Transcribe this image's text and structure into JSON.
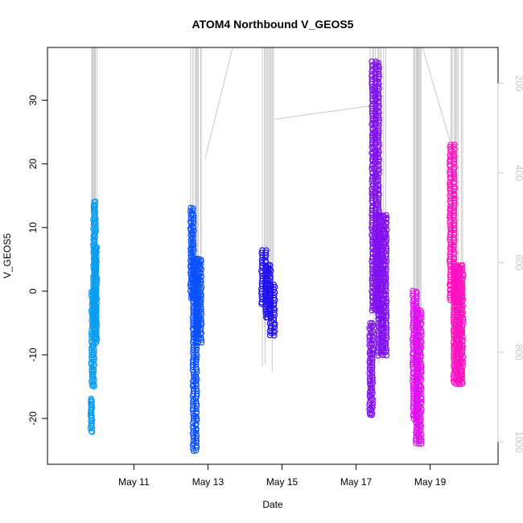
{
  "chart_data": {
    "type": "scatter",
    "title": "ATOM4 Northbound V_GEOS5",
    "xlabel": "Date",
    "ylabel": "V_GEOS5",
    "xlim": [
      "2016-05-08T16:00",
      "2016-05-20T20:00"
    ],
    "ylim": [
      -27.2,
      38.3
    ],
    "x_ticks": [
      {
        "x": "2016-05-11T00:00",
        "label": "May 11"
      },
      {
        "x": "2016-05-13T00:00",
        "label": "May 13"
      },
      {
        "x": "2016-05-15T00:00",
        "label": "May 15"
      },
      {
        "x": "2016-05-17T00:00",
        "label": "May 17"
      },
      {
        "x": "2016-05-19T00:00",
        "label": "May 19"
      }
    ],
    "y_ticks": [
      -20,
      -10,
      0,
      10,
      20,
      30
    ],
    "secondary_axis": {
      "side": "right",
      "color": "#c8c8c8",
      "reversed": true,
      "range": [
        120,
        1050
      ],
      "ticks": [
        200,
        400,
        600,
        800,
        1000
      ],
      "series_type": "line"
    },
    "grid": false,
    "series": [
      {
        "color": "#0a9ef0",
        "segments": [
          {
            "t0": "2016-05-09T20:15",
            "t1": "2016-05-09T20:45",
            "ymin": -22,
            "ymax": -17
          },
          {
            "t0": "2016-05-09T20:45",
            "t1": "2016-05-09T22:00",
            "ymin": -15,
            "ymax": 0
          },
          {
            "t0": "2016-05-09T22:00",
            "t1": "2016-05-09T23:00",
            "ymin": -5,
            "ymax": 14
          },
          {
            "t0": "2016-05-09T23:00",
            "t1": "2016-05-09T23:45",
            "ymin": -8,
            "ymax": 7
          }
        ]
      },
      {
        "color": "#0a50ff",
        "segments": [
          {
            "t0": "2016-05-12T13:00",
            "t1": "2016-05-12T14:30",
            "ymin": -1,
            "ymax": 13
          },
          {
            "t0": "2016-05-12T14:30",
            "t1": "2016-05-12T16:30",
            "ymin": -25,
            "ymax": 5
          },
          {
            "t0": "2016-05-12T16:30",
            "t1": "2016-05-12T19:30",
            "ymin": -8,
            "ymax": 5
          }
        ]
      },
      {
        "color": "#2010f0",
        "segments": [
          {
            "t0": "2016-05-14T11:00",
            "t1": "2016-05-14T13:30",
            "ymin": -2,
            "ymax": 6.5
          },
          {
            "t0": "2016-05-14T13:30",
            "t1": "2016-05-14T16:30",
            "ymin": -4,
            "ymax": 4
          },
          {
            "t0": "2016-05-14T16:30",
            "t1": "2016-05-14T19:00",
            "ymin": -7,
            "ymax": 1
          }
        ]
      },
      {
        "color": "#8010f0",
        "segments": [
          {
            "t0": "2016-05-17T09:00",
            "t1": "2016-05-17T10:30",
            "ymin": -19.5,
            "ymax": -5
          },
          {
            "t0": "2016-05-17T10:30",
            "t1": "2016-05-17T14:30",
            "ymin": -3,
            "ymax": 36
          },
          {
            "t0": "2016-05-17T14:30",
            "t1": "2016-05-17T19:30",
            "ymin": -10,
            "ymax": 12
          }
        ]
      },
      {
        "color": "#e010f0",
        "segments": [
          {
            "t0": "2016-05-18T13:00",
            "t1": "2016-05-18T15:00",
            "ymin": -20,
            "ymax": 0
          },
          {
            "t0": "2016-05-18T15:00",
            "t1": "2016-05-18T18:00",
            "ymin": -24,
            "ymax": -3
          }
        ]
      },
      {
        "color": "#ff10c0",
        "segments": [
          {
            "t0": "2016-05-19T13:00",
            "t1": "2016-05-19T15:30",
            "ymin": -1.5,
            "ymax": 23
          },
          {
            "t0": "2016-05-19T15:30",
            "t1": "2016-05-19T21:00",
            "ymin": -14.5,
            "ymax": 4
          }
        ]
      }
    ]
  }
}
